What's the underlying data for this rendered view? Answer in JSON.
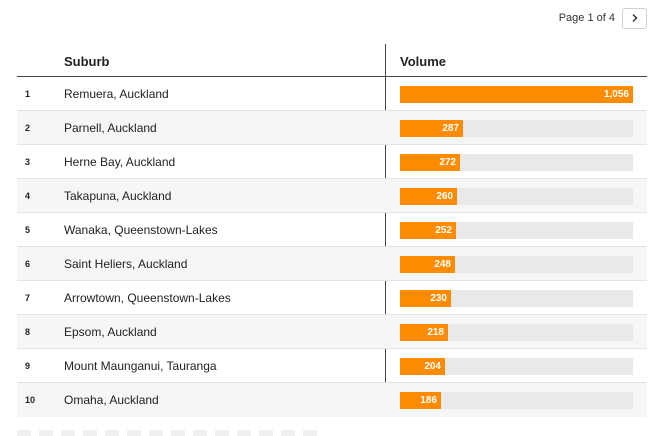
{
  "pagination": {
    "label": "Page 1 of 4",
    "next_icon": "chevron-right-icon"
  },
  "colors": {
    "bar": "#ff8c00",
    "track": "#e9e9e9"
  },
  "chart_data": {
    "type": "table",
    "columns": [
      "",
      "Suburb",
      "Volume"
    ],
    "xlim": [
      0,
      1056
    ],
    "rows": [
      {
        "rank": "1",
        "suburb": "Remuera, Auckland",
        "volume": 1056,
        "label": "1,056"
      },
      {
        "rank": "2",
        "suburb": "Parnell, Auckland",
        "volume": 287,
        "label": "287"
      },
      {
        "rank": "3",
        "suburb": "Herne Bay, Auckland",
        "volume": 272,
        "label": "272"
      },
      {
        "rank": "4",
        "suburb": "Takapuna, Auckland",
        "volume": 260,
        "label": "260"
      },
      {
        "rank": "5",
        "suburb": "Wanaka, Queenstown-Lakes",
        "volume": 252,
        "label": "252"
      },
      {
        "rank": "6",
        "suburb": "Saint Heliers, Auckland",
        "volume": 248,
        "label": "248"
      },
      {
        "rank": "7",
        "suburb": "Arrowtown, Queenstown-Lakes",
        "volume": 230,
        "label": "230"
      },
      {
        "rank": "8",
        "suburb": "Epsom, Auckland",
        "volume": 218,
        "label": "218"
      },
      {
        "rank": "9",
        "suburb": "Mount Maunganui, Tauranga",
        "volume": 204,
        "label": "204"
      },
      {
        "rank": "10",
        "suburb": "Omaha, Auckland",
        "volume": 186,
        "label": "186"
      }
    ]
  }
}
